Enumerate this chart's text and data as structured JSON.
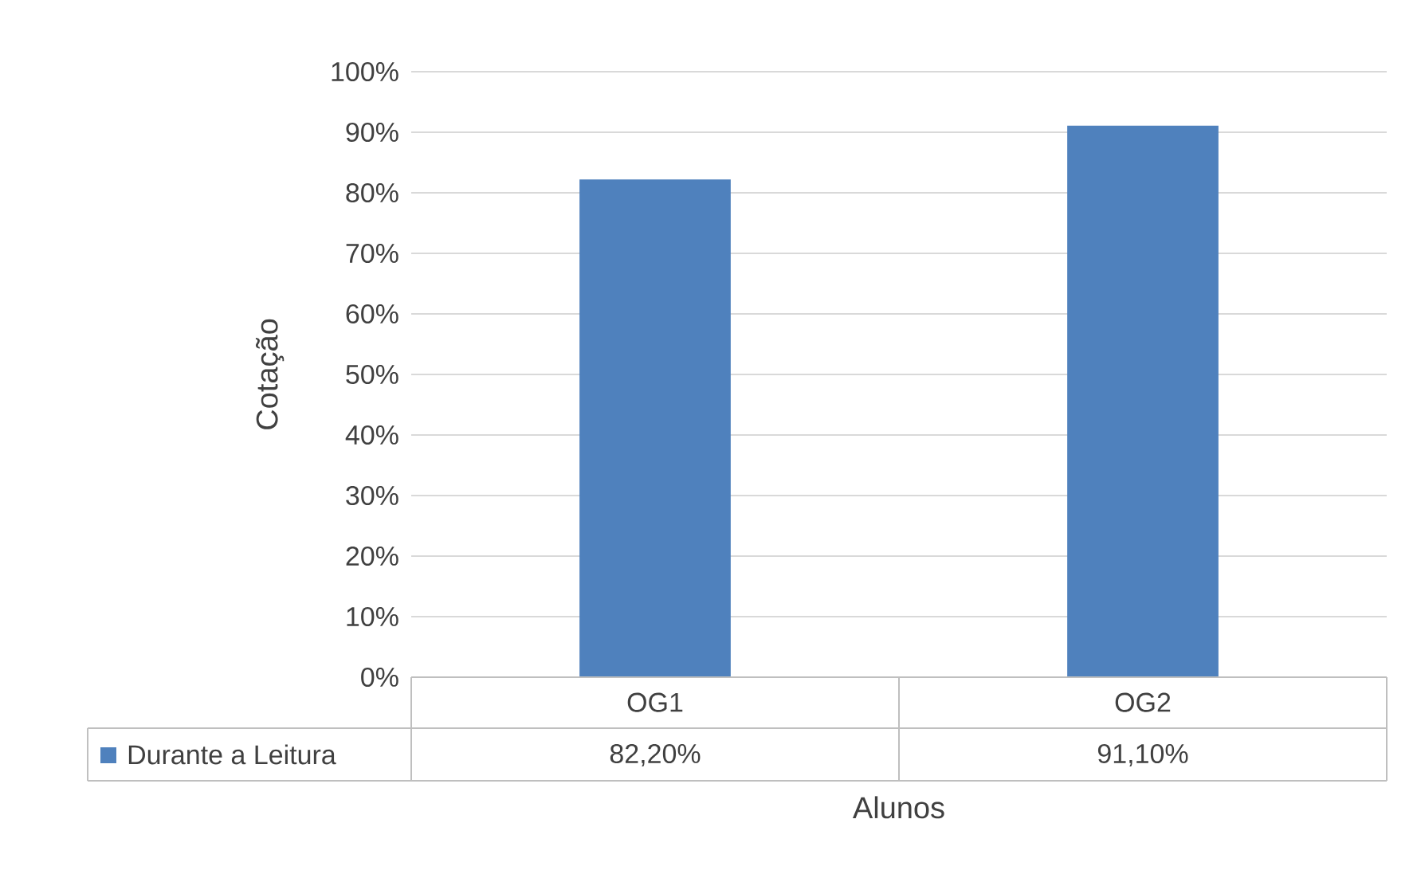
{
  "chart_data": {
    "type": "bar",
    "xlabel": "Alunos",
    "ylabel": "Cotação",
    "categories": [
      "OG1",
      "OG2"
    ],
    "series": [
      {
        "name": "Durante a Leitura",
        "color": "#4f81bd",
        "values": [
          82.2,
          91.1
        ],
        "value_labels": [
          "82,20%",
          "91,10%"
        ]
      }
    ],
    "ylim": [
      0,
      100
    ],
    "yticks": [
      {
        "value": 0,
        "label": "0%"
      },
      {
        "value": 10,
        "label": "10%"
      },
      {
        "value": 20,
        "label": "20%"
      },
      {
        "value": 30,
        "label": "30%"
      },
      {
        "value": 40,
        "label": "40%"
      },
      {
        "value": 50,
        "label": "50%"
      },
      {
        "value": 60,
        "label": "60%"
      },
      {
        "value": 70,
        "label": "70%"
      },
      {
        "value": 80,
        "label": "80%"
      },
      {
        "value": 90,
        "label": "90%"
      },
      {
        "value": 100,
        "label": "100%"
      }
    ],
    "grid": "y",
    "legend": "bottom"
  }
}
